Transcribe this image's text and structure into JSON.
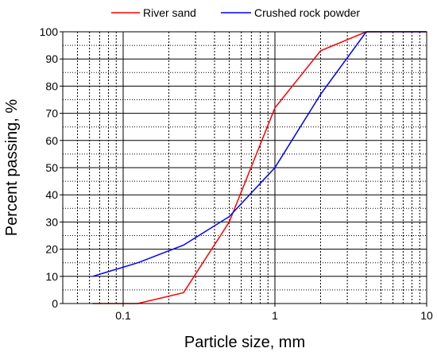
{
  "chart_data": {
    "type": "line",
    "title": "",
    "xlabel": "Particle size, mm",
    "ylabel": "Percent passing, %",
    "x_scale": "log",
    "xlim": [
      0.04,
      10
    ],
    "ylim": [
      0,
      100
    ],
    "x_ticks": [
      0.1,
      1,
      10
    ],
    "x_tick_labels": [
      "0.1",
      "1",
      "10"
    ],
    "y_ticks": [
      0,
      10,
      20,
      30,
      40,
      50,
      60,
      70,
      80,
      90,
      100
    ],
    "y_tick_labels": [
      "0",
      "10",
      "20",
      "30",
      "40",
      "50",
      "60",
      "70",
      "80",
      "90",
      "100"
    ],
    "grid": "on",
    "legend_position": "top",
    "series": [
      {
        "name": "River sand",
        "color": "#ff0000",
        "x": [
          0.063,
          0.125,
          0.25,
          0.5,
          1,
          2,
          4,
          10
        ],
        "y": [
          0,
          0,
          4,
          30,
          72,
          93,
          100,
          100
        ]
      },
      {
        "name": "Crushed rock powder",
        "color": "#0000ff",
        "x": [
          0.063,
          0.125,
          0.25,
          0.5,
          1,
          2,
          4,
          10
        ],
        "y": [
          10,
          15,
          21.5,
          32,
          50,
          77,
          100,
          100
        ]
      }
    ]
  }
}
